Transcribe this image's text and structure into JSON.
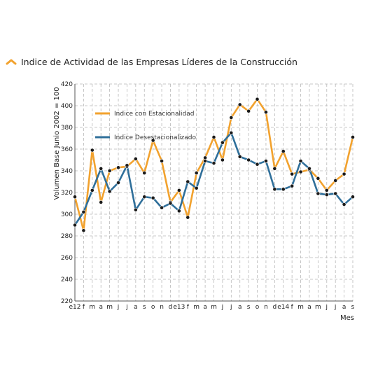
{
  "header": {
    "title": "Indice de Actividad de las Empresas Líderes de la Construcción",
    "icon": "chevron-up-icon",
    "icon_color": "#f2a22e"
  },
  "chart_data": {
    "type": "line",
    "title": "Indice de Actividad de las Empresas Líderes de la Construcción",
    "xlabel": "Mes",
    "ylabel": "Volumen Base Junio 2002 = 100",
    "ylim": [
      220,
      420
    ],
    "yticks": [
      220,
      240,
      260,
      280,
      300,
      320,
      340,
      360,
      380,
      400,
      420
    ],
    "grid": true,
    "legend_position": "top-left inside",
    "categories": [
      "e12",
      "f",
      "m",
      "a",
      "m",
      "j",
      "j",
      "a",
      "s",
      "o",
      "n",
      "d",
      "e13",
      "f",
      "m",
      "a",
      "m",
      "j",
      "j",
      "a",
      "s",
      "o",
      "n",
      "d",
      "e14",
      "f",
      "m",
      "a",
      "m",
      "j",
      "j",
      "a",
      "s"
    ],
    "series": [
      {
        "name": "Indice con Estacionalidad",
        "color": "#f2a22e",
        "values": [
          316,
          285,
          359,
          311,
          340,
          343,
          344,
          351,
          338,
          368,
          349,
          311,
          322,
          297,
          338,
          352,
          371,
          350,
          389,
          401,
          395,
          406,
          394,
          342,
          358,
          337,
          339,
          341,
          333,
          322,
          331,
          337,
          371
        ]
      },
      {
        "name": "Indice Desestacionalizado",
        "color": "#2f6f9a",
        "values": [
          290,
          302,
          322,
          342,
          321,
          329,
          345,
          304,
          316,
          315,
          306,
          310,
          303,
          330,
          324,
          349,
          347,
          366,
          375,
          353,
          350,
          346,
          349,
          323,
          323,
          326,
          349,
          342,
          319,
          318,
          319,
          309,
          316
        ]
      }
    ]
  }
}
